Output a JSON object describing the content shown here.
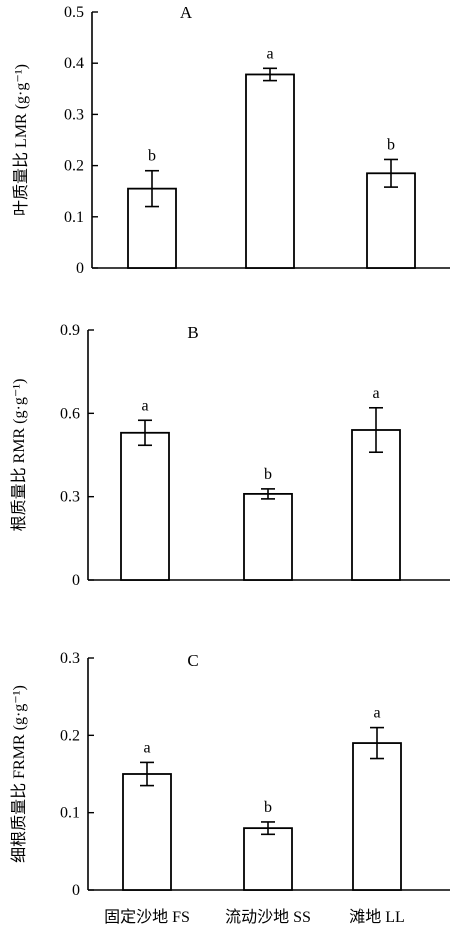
{
  "chart_data": [
    {
      "type": "bar",
      "panel_label": "A",
      "ylabel": "叶质量比 LMR (g·g⁻¹)",
      "categories": [
        "固定沙地 FS",
        "流动沙地 SS",
        "滩地 LL"
      ],
      "values": [
        0.155,
        0.378,
        0.185
      ],
      "errors": [
        0.035,
        0.012,
        0.027
      ],
      "significance": [
        "b",
        "a",
        "b"
      ],
      "ylim": [
        0,
        0.5
      ],
      "yticks": [
        "0",
        "0.1",
        "0.2",
        "0.3",
        "0.4",
        "0.5"
      ],
      "grid": false
    },
    {
      "type": "bar",
      "panel_label": "B",
      "ylabel": "根质量比 RMR (g·g⁻¹)",
      "categories": [
        "固定沙地 FS",
        "流动沙地 SS",
        "滩地 LL"
      ],
      "values": [
        0.53,
        0.31,
        0.54
      ],
      "errors": [
        0.045,
        0.018,
        0.08
      ],
      "significance": [
        "a",
        "b",
        "a"
      ],
      "ylim": [
        0,
        0.9
      ],
      "yticks": [
        "0",
        "0.3",
        "0.6",
        "0.9"
      ],
      "grid": false
    },
    {
      "type": "bar",
      "panel_label": "C",
      "ylabel": "细根质量比 FRMR (g·g⁻¹)",
      "categories": [
        "固定沙地 FS",
        "流动沙地 SS",
        "滩地 LL"
      ],
      "values": [
        0.15,
        0.08,
        0.19
      ],
      "errors": [
        0.015,
        0.008,
        0.02
      ],
      "significance": [
        "a",
        "b",
        "a"
      ],
      "ylim": [
        0,
        0.3
      ],
      "yticks": [
        "0",
        "0.1",
        "0.2",
        "0.3"
      ],
      "grid": false
    }
  ]
}
